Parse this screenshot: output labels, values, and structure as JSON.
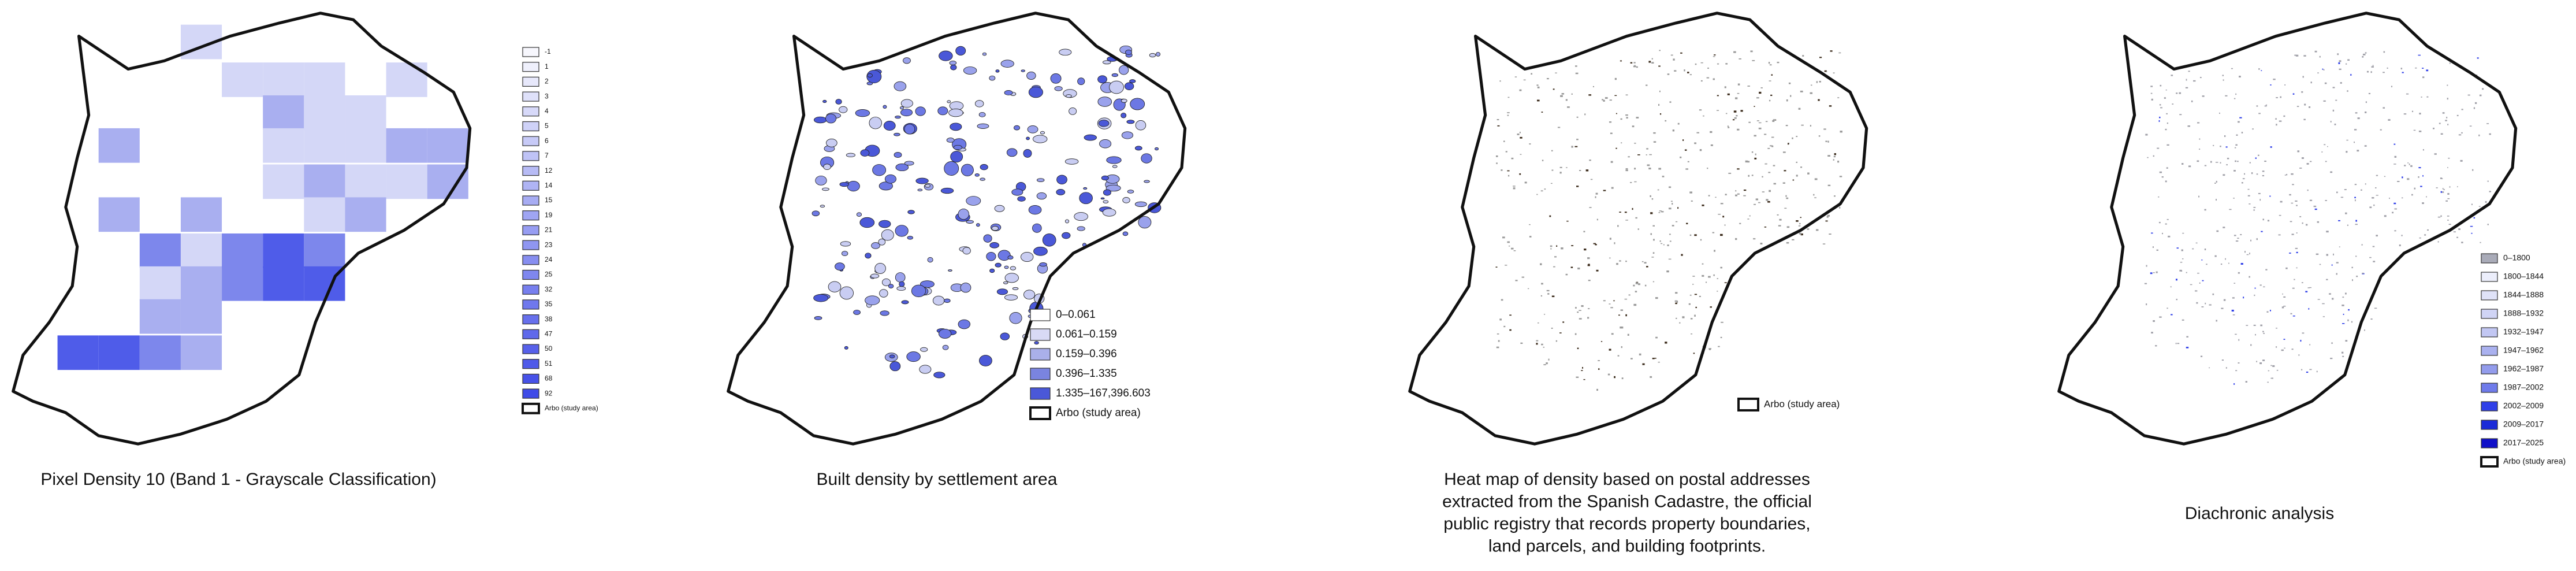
{
  "panels": [
    {
      "caption": [
        "Pixel Density 10 (Band 1 - Grayscale Classification)"
      ],
      "legend": [
        {
          "label": "-1",
          "color": "#f7f7fd"
        },
        {
          "label": "1",
          "color": "#eff0fc"
        },
        {
          "label": "2",
          "color": "#e7e8fb"
        },
        {
          "label": "3",
          "color": "#dfe1fa"
        },
        {
          "label": "4",
          "color": "#d7d9f9"
        },
        {
          "label": "5",
          "color": "#cfd2f8"
        },
        {
          "label": "6",
          "color": "#c7caf7"
        },
        {
          "label": "7",
          "color": "#bfc3f6"
        },
        {
          "label": "12",
          "color": "#b7bbf5"
        },
        {
          "label": "14",
          "color": "#afb4f4"
        },
        {
          "label": "15",
          "color": "#a7acf3"
        },
        {
          "label": "19",
          "color": "#9fa5f3"
        },
        {
          "label": "21",
          "color": "#979df2"
        },
        {
          "label": "23",
          "color": "#8f96f1"
        },
        {
          "label": "24",
          "color": "#878ef0"
        },
        {
          "label": "25",
          "color": "#7f87ef"
        },
        {
          "label": "32",
          "color": "#777fee"
        },
        {
          "label": "35",
          "color": "#6f78ed"
        },
        {
          "label": "38",
          "color": "#6770ec"
        },
        {
          "label": "47",
          "color": "#5f69eb"
        },
        {
          "label": "50",
          "color": "#5761ea"
        },
        {
          "label": "51",
          "color": "#4f5ae9"
        },
        {
          "label": "68",
          "color": "#4752e8"
        },
        {
          "label": "92",
          "color": "#3f4be7"
        }
      ],
      "study_area": "Arbo (study area)"
    },
    {
      "caption": [
        "Built density by settlement area"
      ],
      "legend": [
        {
          "label": "0–0.061",
          "color": "#ffffff"
        },
        {
          "label": "0.061–0.159",
          "color": "#d8daf5"
        },
        {
          "label": "0.159–0.396",
          "color": "#aab0ea"
        },
        {
          "label": "0.396–1.335",
          "color": "#7a84e0"
        },
        {
          "label": "1.335–167,396.603",
          "color": "#4a58d8"
        }
      ],
      "study_area": "Arbo (study area)"
    },
    {
      "caption": [
        "Heat map of density based on postal addresses",
        "extracted from the Spanish Cadastre, the official",
        "public registry that records property boundaries,",
        "land parcels, and building footprints."
      ],
      "legend": [],
      "study_area": "Arbo (study area)"
    },
    {
      "caption": [
        "Diachronic analysis"
      ],
      "legend": [
        {
          "label": "0–1800",
          "color": "#a9abb8"
        },
        {
          "label": "1800–1844",
          "color": "#eceefb"
        },
        {
          "label": "1844–1888",
          "color": "#dfe2f8"
        },
        {
          "label": "1888–1932",
          "color": "#d0d4f5"
        },
        {
          "label": "1932–1947",
          "color": "#c2c7f3"
        },
        {
          "label": "1947–1962",
          "color": "#aab1ef"
        },
        {
          "label": "1962–1987",
          "color": "#939cec"
        },
        {
          "label": "1987–2002",
          "color": "#6f7bea"
        },
        {
          "label": "2002–2009",
          "color": "#2f3fe8"
        },
        {
          "label": "2009–2017",
          "color": "#1b2bd8"
        },
        {
          "label": "2017–2025",
          "color": "#1010c8"
        }
      ],
      "study_area": "Arbo (study area)"
    }
  ]
}
